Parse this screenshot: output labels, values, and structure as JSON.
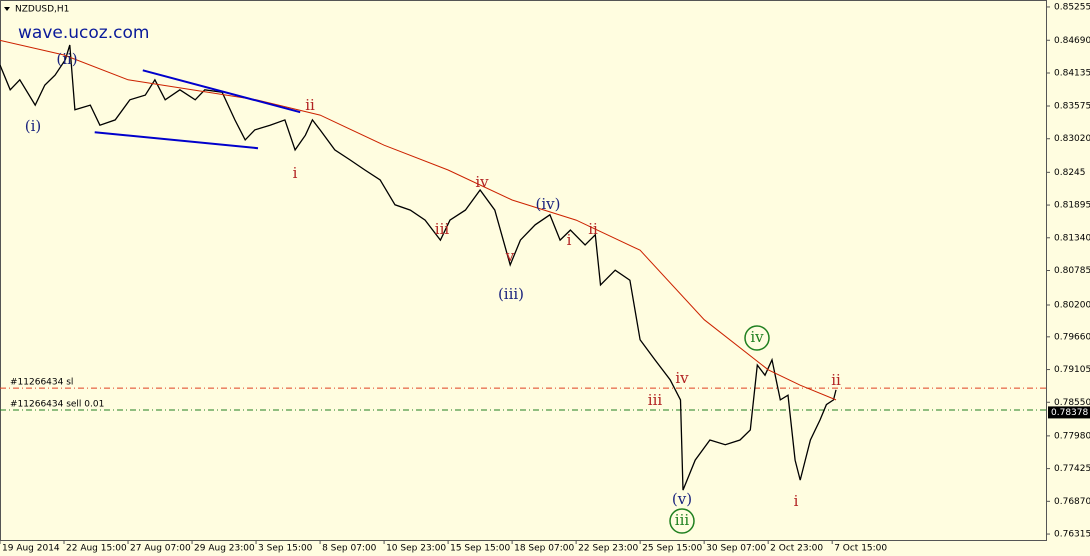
{
  "chart_data": {
    "type": "line",
    "title": "NZDUSD,H1",
    "watermark": "wave.ucoz.com",
    "background": "#fffde0",
    "xlim": [
      0,
      16.34
    ],
    "ylim": [
      0.76214,
      0.85373
    ],
    "xticks": [
      {
        "value": 0,
        "label": "19 Aug 2014"
      },
      {
        "value": 1,
        "label": "22 Aug 15:00"
      },
      {
        "value": 2,
        "label": "27 Aug 07:00"
      },
      {
        "value": 3,
        "label": "29 Aug 23:00"
      },
      {
        "value": 4,
        "label": "3 Sep 15:00"
      },
      {
        "value": 5,
        "label": "8 Sep 07:00"
      },
      {
        "value": 6,
        "label": "10 Sep 23:00"
      },
      {
        "value": 7,
        "label": "15 Sep 15:00"
      },
      {
        "value": 8,
        "label": "18 Sep 07:00"
      },
      {
        "value": 9,
        "label": "22 Sep 23:00"
      },
      {
        "value": 10,
        "label": "25 Sep 15:00"
      },
      {
        "value": 11,
        "label": "30 Sep 07:00"
      },
      {
        "value": 12,
        "label": "2 Oct 23:00"
      },
      {
        "value": 13,
        "label": "7 Oct 15:00"
      }
    ],
    "yticks": [
      0.85255,
      {
        "value": 0.8469,
        "label": "0.84690"
      },
      0.84135,
      0.83575,
      {
        "value": 0.8302,
        "label": "0.83020"
      },
      0.8245,
      0.81895,
      {
        "value": 0.8134,
        "label": "0.81340"
      },
      0.80785,
      {
        "value": 0.802,
        "label": "0.80200"
      },
      {
        "value": 0.7966,
        "label": "0.79660"
      },
      0.79105,
      {
        "value": 0.7855,
        "label": "0.78550"
      },
      {
        "value": 0.7798,
        "label": "0.77980"
      },
      0.77425,
      {
        "value": 0.7687,
        "label": "0.76870"
      },
      0.76315
    ],
    "series": [
      {
        "color": "#000000",
        "x": [
          0,
          0.16,
          0.31,
          0.55,
          0.7,
          0.86,
          1.02,
          1.09,
          1.17,
          1.41,
          1.56,
          1.8,
          2.03,
          2.27,
          2.42,
          2.58,
          2.81,
          3.05,
          3.2,
          3.47,
          3.67,
          3.83,
          3.98,
          4.22,
          4.45,
          4.61,
          4.77,
          4.88,
          5,
          5.23,
          5.47,
          5.7,
          5.94,
          6.17,
          6.41,
          6.64,
          6.88,
          7.03,
          7.27,
          7.5,
          7.73,
          7.97,
          8.13,
          8.36,
          8.59,
          8.75,
          8.91,
          9.14,
          9.3,
          9.38,
          9.61,
          9.84,
          10,
          10.23,
          10.47,
          10.63,
          10.67,
          10.86,
          11.09,
          11.33,
          11.56,
          11.72,
          11.83,
          11.95,
          12.06,
          12.19,
          12.31,
          12.42,
          12.5,
          12.66,
          12.81,
          12.91,
          13.02,
          13.06
        ],
        "values": [
          0.8427,
          0.8385,
          0.8402,
          0.8359,
          0.8393,
          0.841,
          0.8436,
          0.8461,
          0.8351,
          0.8359,
          0.8325,
          0.8334,
          0.8368,
          0.8376,
          0.8402,
          0.8368,
          0.8385,
          0.8368,
          0.8385,
          0.8381,
          0.8334,
          0.83,
          0.8317,
          0.8325,
          0.8334,
          0.8283,
          0.8308,
          0.8334,
          0.8317,
          0.8283,
          0.8266,
          0.8249,
          0.8232,
          0.819,
          0.8181,
          0.8164,
          0.813,
          0.8164,
          0.8181,
          0.8215,
          0.8181,
          0.8088,
          0.813,
          0.8156,
          0.8173,
          0.813,
          0.8147,
          0.8122,
          0.8139,
          0.8054,
          0.8079,
          0.8062,
          0.7961,
          0.7927,
          0.7893,
          0.7859,
          0.7706,
          0.7757,
          0.7791,
          0.7783,
          0.7791,
          0.7808,
          0.7918,
          0.7901,
          0.7927,
          0.7859,
          0.7867,
          0.7757,
          0.7723,
          0.7791,
          0.7825,
          0.7851,
          0.7859,
          0.7876
        ]
      },
      {
        "color": "#cc2200",
        "x": [
          0,
          1,
          2,
          3,
          4,
          5,
          6,
          7,
          8,
          9,
          10,
          11,
          12,
          12.5,
          13.06
        ],
        "values": [
          0.8469,
          0.8444,
          0.8402,
          0.8385,
          0.8368,
          0.8342,
          0.8291,
          0.8249,
          0.8198,
          0.8164,
          0.8113,
          0.7995,
          0.791,
          0.7884,
          0.7859
        ]
      }
    ],
    "trendlines": [
      {
        "color": "#0000cc",
        "x": [
          2.23,
          4.69
        ],
        "values": [
          0.8418,
          0.8347
        ]
      },
      {
        "color": "#0000cc",
        "x": [
          1.48,
          4.03
        ],
        "values": [
          0.8313,
          0.8286
        ]
      }
    ],
    "levels": [
      {
        "label": "#11266434 sl",
        "value": 0.7879,
        "color": "#e04020"
      },
      {
        "label": "#11266434 sell 0.01",
        "value": 0.7842,
        "color": "#208020"
      }
    ],
    "current_price": 0.78378,
    "annotations": [
      {
        "text": "(i)",
        "color": "#1a237e"
      },
      {
        "text": "(ii)",
        "color": "#1a237e"
      },
      {
        "text": "ii",
        "color": "#b22222"
      },
      {
        "text": "i",
        "color": "#b22222"
      },
      {
        "text": "iv",
        "color": "#b22222"
      },
      {
        "text": "(iv)",
        "color": "#1a237e"
      },
      {
        "text": "iii",
        "color": "#b22222"
      },
      {
        "text": "v",
        "color": "#b22222"
      },
      {
        "text": "(iii)",
        "color": "#1a237e"
      },
      {
        "text": "ii",
        "color": "#b22222"
      },
      {
        "text": "i",
        "color": "#b22222"
      },
      {
        "text": "iv",
        "color": "#b22222"
      },
      {
        "text": "iii",
        "color": "#b22222"
      },
      {
        "text": "(v)",
        "color": "#1a237e"
      },
      {
        "text": "iii",
        "color": "#208020",
        "circled": true
      },
      {
        "text": "iv",
        "color": "#208020",
        "circled": true
      },
      {
        "text": "ii",
        "color": "#b22222"
      },
      {
        "text": "i",
        "color": "#b22222"
      }
    ]
  }
}
